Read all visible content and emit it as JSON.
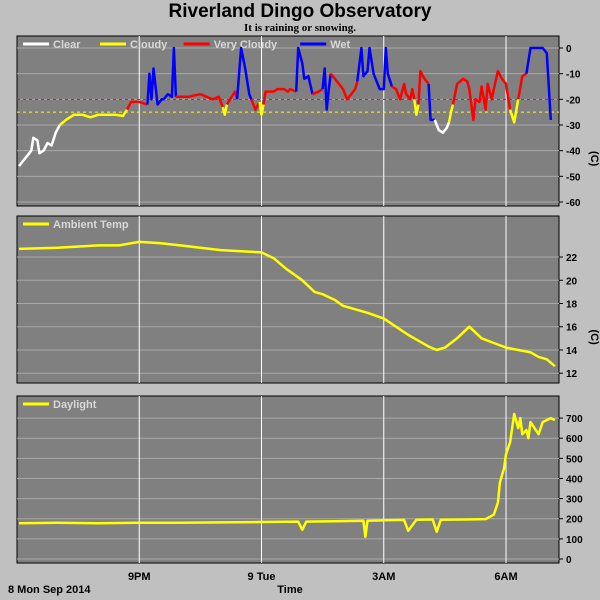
{
  "title": "Riverland Dingo Observatory",
  "subtitle": "It is raining or snowing.",
  "date_label": "8 Mon Sep 2014",
  "x_axis_label": "Time",
  "colors": {
    "background": "#c0c0c0",
    "plot_bg": "#808080",
    "clear": "#ffffff",
    "cloudy": "#ffff00",
    "very_cloudy": "#ff0000",
    "wet": "#0000ff",
    "threshold_very_cloudy": "#ff0000",
    "threshold_cloudy": "#ffff00"
  },
  "chart_data": [
    {
      "type": "line",
      "name": "sky",
      "xlabel": "Time",
      "ylabel": "(C)",
      "ylim": [
        -60,
        0
      ],
      "xlim": [
        18.0,
        31.3
      ],
      "yticks": [
        0,
        -10,
        -20,
        -30,
        -40,
        -50,
        -60
      ],
      "xticks": [
        {
          "x": 21,
          "label": "9PM"
        },
        {
          "x": 24,
          "label": "9 Tue"
        },
        {
          "x": 27,
          "label": "3AM"
        },
        {
          "x": 30,
          "label": "6AM"
        }
      ],
      "legend": [
        {
          "label": "Clear",
          "color": "#ffffff"
        },
        {
          "label": "Cloudy",
          "color": "#ffff00"
        },
        {
          "label": "Very Cloudy",
          "color": "#ff0000"
        },
        {
          "label": "Wet",
          "color": "#0000ff"
        }
      ],
      "thresholds": [
        {
          "y": -20,
          "color": "#ff0000"
        },
        {
          "y": -25,
          "color": "#ffff00"
        }
      ],
      "grid": true,
      "segments": [
        {
          "state": "clear",
          "points": [
            [
              18.05,
              -46
            ],
            [
              18.15,
              -44
            ],
            [
              18.25,
              -42
            ],
            [
              18.35,
              -40
            ],
            [
              18.4,
              -35
            ],
            [
              18.5,
              -36
            ],
            [
              18.55,
              -41
            ],
            [
              18.65,
              -40
            ],
            [
              18.75,
              -37
            ],
            [
              18.85,
              -38
            ],
            [
              18.95,
              -33
            ],
            [
              19.05,
              -30
            ]
          ]
        },
        {
          "state": "cloudy",
          "points": [
            [
              19.05,
              -30
            ],
            [
              19.2,
              -28
            ],
            [
              19.4,
              -26
            ],
            [
              19.6,
              -26
            ],
            [
              19.8,
              -27
            ],
            [
              20.0,
              -26
            ],
            [
              20.2,
              -26
            ],
            [
              20.4,
              -26
            ],
            [
              20.6,
              -26.5
            ],
            [
              20.7,
              -24
            ]
          ]
        },
        {
          "state": "very_cloudy",
          "points": [
            [
              20.7,
              -24
            ],
            [
              20.8,
              -21
            ],
            [
              21.0,
              -21
            ],
            [
              21.2,
              -22
            ]
          ]
        },
        {
          "state": "wet",
          "points": [
            [
              21.2,
              -22
            ],
            [
              21.25,
              -10
            ],
            [
              21.3,
              -20
            ],
            [
              21.35,
              -8
            ],
            [
              21.45,
              -22
            ],
            [
              21.55,
              -20
            ],
            [
              21.6,
              -20
            ],
            [
              21.7,
              -18
            ],
            [
              21.8,
              -19
            ],
            [
              21.85,
              0
            ],
            [
              21.9,
              -19
            ]
          ]
        },
        {
          "state": "very_cloudy",
          "points": [
            [
              21.9,
              -19
            ],
            [
              22.2,
              -19
            ],
            [
              22.5,
              -18
            ],
            [
              22.8,
              -20
            ],
            [
              22.95,
              -19
            ],
            [
              23.05,
              -23
            ]
          ]
        },
        {
          "state": "cloudy",
          "points": [
            [
              23.05,
              -23
            ],
            [
              23.1,
              -26
            ],
            [
              23.15,
              -22
            ]
          ]
        },
        {
          "state": "very_cloudy",
          "points": [
            [
              23.15,
              -22
            ],
            [
              23.35,
              -17
            ],
            [
              23.4,
              -20
            ]
          ]
        },
        {
          "state": "wet",
          "points": [
            [
              23.4,
              -20
            ],
            [
              23.5,
              0
            ],
            [
              23.6,
              -8
            ],
            [
              23.7,
              -18
            ],
            [
              23.75,
              -20
            ]
          ]
        },
        {
          "state": "very_cloudy",
          "points": [
            [
              23.75,
              -20
            ],
            [
              23.85,
              -24
            ],
            [
              23.95,
              -21
            ]
          ]
        },
        {
          "state": "cloudy",
          "points": [
            [
              23.95,
              -21
            ],
            [
              24.0,
              -26
            ],
            [
              24.05,
              -22
            ]
          ]
        },
        {
          "state": "very_cloudy",
          "points": [
            [
              24.05,
              -22
            ],
            [
              24.1,
              -17
            ],
            [
              24.2,
              -17
            ],
            [
              24.3,
              -17
            ],
            [
              24.4,
              -16
            ],
            [
              24.55,
              -16
            ],
            [
              24.65,
              -17
            ],
            [
              24.7,
              -16
            ],
            [
              24.85,
              -17
            ]
          ]
        },
        {
          "state": "wet",
          "points": [
            [
              24.85,
              -17
            ],
            [
              24.9,
              0
            ],
            [
              25.0,
              -6
            ],
            [
              25.05,
              -12
            ],
            [
              25.15,
              -11
            ],
            [
              25.25,
              -18
            ]
          ]
        },
        {
          "state": "very_cloudy",
          "points": [
            [
              25.25,
              -18
            ],
            [
              25.4,
              -17
            ],
            [
              25.5,
              -16
            ]
          ]
        },
        {
          "state": "wet",
          "points": [
            [
              25.5,
              -16
            ],
            [
              25.55,
              -8
            ],
            [
              25.6,
              -24
            ],
            [
              25.65,
              -16
            ],
            [
              25.7,
              -10
            ]
          ]
        },
        {
          "state": "very_cloudy",
          "points": [
            [
              25.7,
              -10
            ],
            [
              25.9,
              -14
            ],
            [
              26.0,
              -16
            ],
            [
              26.1,
              -20
            ],
            [
              26.3,
              -16
            ],
            [
              26.35,
              -13
            ]
          ]
        },
        {
          "state": "wet",
          "points": [
            [
              26.35,
              -13
            ],
            [
              26.45,
              0
            ],
            [
              26.5,
              -11
            ],
            [
              26.6,
              -9
            ],
            [
              26.65,
              0
            ],
            [
              26.75,
              -10
            ],
            [
              26.8,
              -12
            ],
            [
              26.9,
              -16
            ],
            [
              27.0,
              -16
            ],
            [
              27.05,
              0
            ],
            [
              27.1,
              -10
            ],
            [
              27.2,
              -15
            ]
          ]
        },
        {
          "state": "very_cloudy",
          "points": [
            [
              27.2,
              -15
            ],
            [
              27.3,
              -16
            ],
            [
              27.4,
              -20
            ],
            [
              27.5,
              -14
            ],
            [
              27.55,
              -18
            ],
            [
              27.65,
              -20
            ],
            [
              27.7,
              -16
            ],
            [
              27.75,
              -20
            ]
          ]
        },
        {
          "state": "cloudy",
          "points": [
            [
              27.75,
              -20
            ],
            [
              27.8,
              -26
            ],
            [
              27.85,
              -22
            ]
          ]
        },
        {
          "state": "very_cloudy",
          "points": [
            [
              27.85,
              -22
            ],
            [
              27.9,
              -9
            ],
            [
              28.0,
              -12
            ],
            [
              28.1,
              -14
            ]
          ]
        },
        {
          "state": "wet",
          "points": [
            [
              28.1,
              -14
            ],
            [
              28.15,
              -28
            ],
            [
              28.25,
              -28
            ]
          ]
        },
        {
          "state": "clear",
          "points": [
            [
              28.25,
              -28
            ],
            [
              28.35,
              -32
            ],
            [
              28.45,
              -33
            ],
            [
              28.55,
              -31
            ],
            [
              28.6,
              -29
            ]
          ]
        },
        {
          "state": "cloudy",
          "points": [
            [
              28.6,
              -29
            ],
            [
              28.65,
              -25
            ],
            [
              28.7,
              -22
            ]
          ]
        },
        {
          "state": "very_cloudy",
          "points": [
            [
              28.7,
              -22
            ],
            [
              28.8,
              -14
            ],
            [
              28.95,
              -12
            ],
            [
              29.05,
              -13
            ],
            [
              29.1,
              -16
            ],
            [
              29.2,
              -28
            ],
            [
              29.25,
              -20
            ],
            [
              29.35,
              -21
            ],
            [
              29.4,
              -15
            ],
            [
              29.5,
              -24
            ],
            [
              29.55,
              -14
            ],
            [
              29.65,
              -20
            ],
            [
              29.7,
              -16
            ],
            [
              29.8,
              -9
            ],
            [
              29.9,
              -12
            ],
            [
              30.0,
              -14
            ],
            [
              30.1,
              -24
            ]
          ]
        },
        {
          "state": "cloudy",
          "points": [
            [
              30.1,
              -24
            ],
            [
              30.2,
              -29
            ],
            [
              30.3,
              -20
            ]
          ]
        },
        {
          "state": "very_cloudy",
          "points": [
            [
              30.3,
              -20
            ],
            [
              30.4,
              -11
            ],
            [
              30.5,
              -10
            ]
          ]
        },
        {
          "state": "wet",
          "points": [
            [
              30.5,
              -10
            ],
            [
              30.6,
              0
            ],
            [
              30.9,
              0
            ],
            [
              31.0,
              -2
            ],
            [
              31.1,
              -28
            ]
          ]
        }
      ]
    },
    {
      "type": "line",
      "name": "ambient",
      "legend": [
        {
          "label": "Ambient Temp",
          "color": "#ffff00"
        }
      ],
      "xlabel": "Time",
      "ylabel": "(C)",
      "ylim": [
        11.5,
        24.5
      ],
      "xlim": [
        18.0,
        31.3
      ],
      "yticks": [
        22,
        20,
        18,
        16,
        14,
        12
      ],
      "grid": true,
      "x": [
        18.05,
        19.0,
        20.0,
        20.5,
        21.0,
        21.5,
        22.0,
        22.5,
        23.0,
        23.5,
        24.0,
        24.3,
        24.6,
        25.0,
        25.3,
        25.5,
        25.8,
        26.0,
        26.3,
        26.6,
        27.0,
        27.3,
        27.6,
        27.9,
        28.1,
        28.3,
        28.5,
        28.8,
        29.1,
        29.4,
        29.7,
        30.0,
        30.3,
        30.6,
        30.8,
        31.0,
        31.2
      ],
      "y": [
        22.7,
        22.8,
        23.0,
        23.0,
        23.3,
        23.2,
        23.0,
        22.8,
        22.6,
        22.5,
        22.4,
        21.9,
        21.0,
        20.0,
        19.0,
        18.8,
        18.3,
        17.8,
        17.5,
        17.2,
        16.7,
        16.0,
        15.3,
        14.7,
        14.3,
        14.0,
        14.2,
        15.0,
        16.0,
        15.0,
        14.6,
        14.2,
        14.0,
        13.8,
        13.4,
        13.2,
        12.6
      ]
    },
    {
      "type": "line",
      "name": "daylight",
      "legend": [
        {
          "label": "Daylight",
          "color": "#ffff00"
        }
      ],
      "xlabel": "Time",
      "ylim": [
        0,
        750
      ],
      "xlim": [
        18.0,
        31.3
      ],
      "yticks": [
        700,
        600,
        500,
        400,
        300,
        200,
        100,
        0
      ],
      "grid": true,
      "x": [
        18.05,
        19.0,
        20.0,
        21.0,
        22.0,
        23.0,
        24.0,
        24.9,
        25.0,
        25.1,
        26.0,
        26.5,
        26.55,
        26.6,
        27.0,
        27.5,
        27.6,
        27.8,
        28.2,
        28.3,
        28.4,
        29.0,
        29.5,
        29.7,
        29.8,
        29.85,
        29.95,
        30.0,
        30.1,
        30.2,
        30.3,
        30.35,
        30.4,
        30.5,
        30.55,
        30.6,
        30.7,
        30.8,
        30.9,
        31.0,
        31.1,
        31.2
      ],
      "y": [
        178,
        180,
        178,
        180,
        180,
        182,
        184,
        186,
        145,
        186,
        188,
        190,
        110,
        190,
        192,
        194,
        140,
        195,
        196,
        135,
        195,
        196,
        198,
        220,
        280,
        380,
        450,
        520,
        580,
        720,
        650,
        700,
        620,
        640,
        600,
        680,
        650,
        620,
        680,
        690,
        700,
        690
      ]
    }
  ]
}
